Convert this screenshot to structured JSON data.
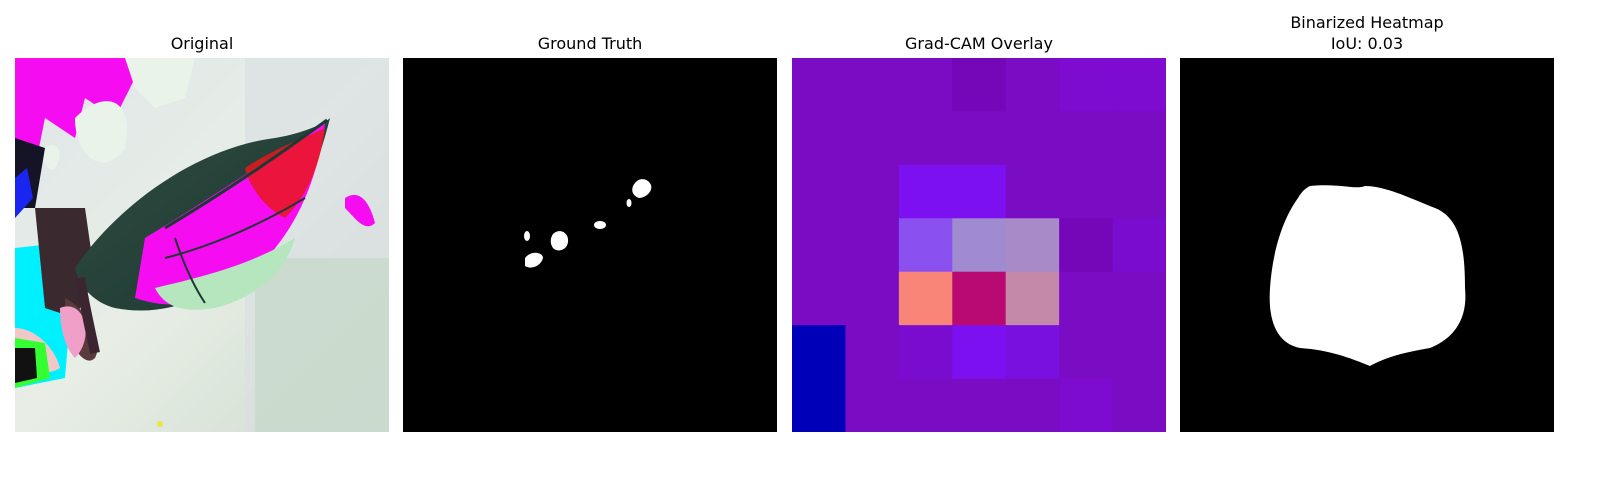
{
  "figure": {
    "panels": [
      {
        "title": "Original"
      },
      {
        "title": "Ground Truth"
      },
      {
        "title": "Grad-CAM Overlay"
      },
      {
        "title": "Binarized Heatmap",
        "subtitle": "IoU: 0.03"
      }
    ],
    "gradcam_grid": {
      "rows": 7,
      "cols": 7,
      "colors": [
        [
          "#7a0cc4",
          "#7a0cc4",
          "#7a0cc4",
          "#7407b8",
          "#7a0cc4",
          "#7d0bd0",
          "#7d0bd0"
        ],
        [
          "#7a0cc4",
          "#7a0cc4",
          "#7a0cc4",
          "#7a0cc4",
          "#7a0cc4",
          "#7a0cc4",
          "#7a0cc4"
        ],
        [
          "#7a0cc4",
          "#7a0cc4",
          "#7d10f0",
          "#7d10f0",
          "#7a0cc4",
          "#7a0cc4",
          "#7a0cc4"
        ],
        [
          "#7a0cc4",
          "#7a0cc4",
          "#8a50f0",
          "#a08ad0",
          "#a88ac8",
          "#7407b8",
          "#7a0cd0"
        ],
        [
          "#7a0cc4",
          "#7a0cc4",
          "#f88578",
          "#b80a70",
          "#c488a8",
          "#7a0cc4",
          "#7a0cc4"
        ],
        [
          "#0000b8",
          "#7a0cc4",
          "#7a0cd0",
          "#7d10f0",
          "#7a10e0",
          "#7a0cc4",
          "#7a0cc4"
        ],
        [
          "#0000b8",
          "#7a0cc4",
          "#7a0cc4",
          "#7a0cc4",
          "#7a0cc4",
          "#7d0bd0",
          "#7a0cc4"
        ]
      ]
    },
    "colors": {
      "mask_background": "#000000",
      "mask_foreground": "#ffffff"
    }
  }
}
